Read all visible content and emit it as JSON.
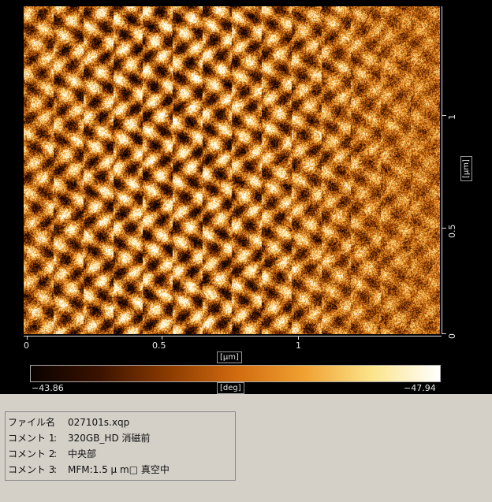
{
  "scan": {
    "x_axis": {
      "ticks": [
        "0",
        "0.5",
        "1"
      ],
      "unit": "[μm]"
    },
    "y_axis": {
      "ticks": [
        "0",
        "0.5",
        "1"
      ],
      "unit": "[μm]"
    }
  },
  "colorbar": {
    "min_label": "−43.86",
    "max_label": "−47.94",
    "unit": "[deg]",
    "colors": [
      "#0a0200",
      "#3a1200",
      "#8a3a00",
      "#d06a10",
      "#f0a030",
      "#fbe48a",
      "#ffffff"
    ]
  },
  "info": {
    "rows": [
      {
        "key": "ファイル名",
        "sep": "",
        "value": "027101s.xqp"
      },
      {
        "key": "コメント 1",
        "sep": ":",
        "value": "320GB_HD 消磁前"
      },
      {
        "key": "コメント 2",
        "sep": ":",
        "value": "中央部"
      },
      {
        "key": "コメント 3",
        "sep": ":",
        "value": "MFM:1.5 μ m□ 真空中"
      }
    ]
  }
}
